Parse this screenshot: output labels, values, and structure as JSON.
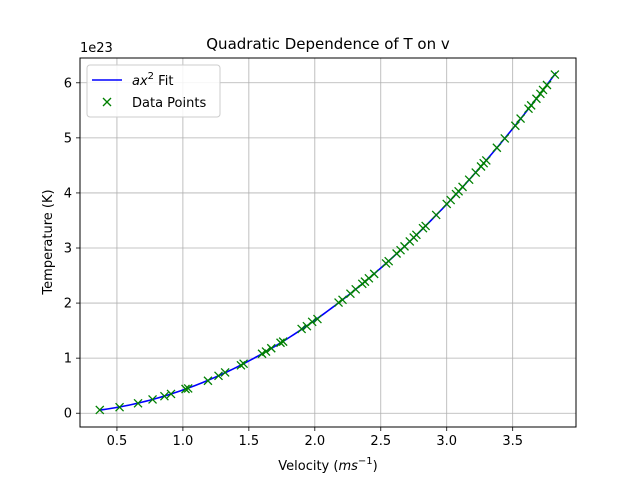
{
  "chart_data": {
    "type": "scatter",
    "title": "Quadratic Dependence of T on v",
    "xlabel": "Velocity",
    "xlabel_unit": "ms",
    "xlabel_unit_exp": "−1",
    "ylabel": "Temperature (K)",
    "y_offset_text": "1e23",
    "xlim": [
      0.22,
      3.98
    ],
    "ylim": [
      -0.25,
      6.45
    ],
    "x_ticks": [
      0.5,
      1.0,
      1.5,
      2.0,
      2.5,
      3.0,
      3.5
    ],
    "x_tick_labels": [
      "0.5",
      "1.0",
      "1.5",
      "2.0",
      "2.5",
      "3.0",
      "3.5"
    ],
    "y_ticks": [
      0,
      1,
      2,
      3,
      4,
      5,
      6
    ],
    "y_tick_labels": [
      "0",
      "1",
      "2",
      "3",
      "4",
      "5",
      "6"
    ],
    "grid": true,
    "legend_placement": "top-left",
    "fit": {
      "label_prefix": "ax",
      "label_exp": "2",
      "label_suffix": " Fit",
      "coefficient": 0.4218,
      "x_range": [
        0.37,
        3.83
      ],
      "color": "#0000ff"
    },
    "series": [
      {
        "name": "Data Points",
        "color": "#008000",
        "marker": "x",
        "x": [
          0.37,
          0.52,
          0.66,
          0.77,
          0.86,
          0.91,
          1.02,
          1.04,
          1.19,
          1.27,
          1.32,
          1.44,
          1.46,
          1.6,
          1.63,
          1.67,
          1.74,
          1.76,
          1.9,
          1.94,
          1.98,
          2.02,
          2.18,
          2.21,
          2.27,
          2.31,
          2.36,
          2.38,
          2.41,
          2.45,
          2.54,
          2.56,
          2.62,
          2.65,
          2.68,
          2.72,
          2.75,
          2.77,
          2.82,
          2.84,
          2.92,
          3.0,
          3.03,
          3.07,
          3.09,
          3.12,
          3.17,
          3.22,
          3.26,
          3.28,
          3.3,
          3.38,
          3.44,
          3.52,
          3.56,
          3.62,
          3.64,
          3.68,
          3.71,
          3.73,
          3.76,
          3.82
        ],
        "y": [
          0.06,
          0.11,
          0.18,
          0.25,
          0.31,
          0.35,
          0.44,
          0.45,
          0.59,
          0.68,
          0.74,
          0.87,
          0.9,
          1.08,
          1.12,
          1.18,
          1.28,
          1.3,
          1.53,
          1.58,
          1.66,
          1.71,
          2.01,
          2.06,
          2.17,
          2.25,
          2.35,
          2.39,
          2.45,
          2.53,
          2.72,
          2.76,
          2.9,
          2.96,
          3.03,
          3.12,
          3.19,
          3.24,
          3.36,
          3.4,
          3.6,
          3.8,
          3.87,
          3.98,
          4.03,
          4.11,
          4.24,
          4.37,
          4.48,
          4.54,
          4.59,
          4.82,
          4.99,
          5.22,
          5.35,
          5.53,
          5.59,
          5.71,
          5.8,
          5.87,
          5.96,
          6.15
        ]
      }
    ]
  }
}
